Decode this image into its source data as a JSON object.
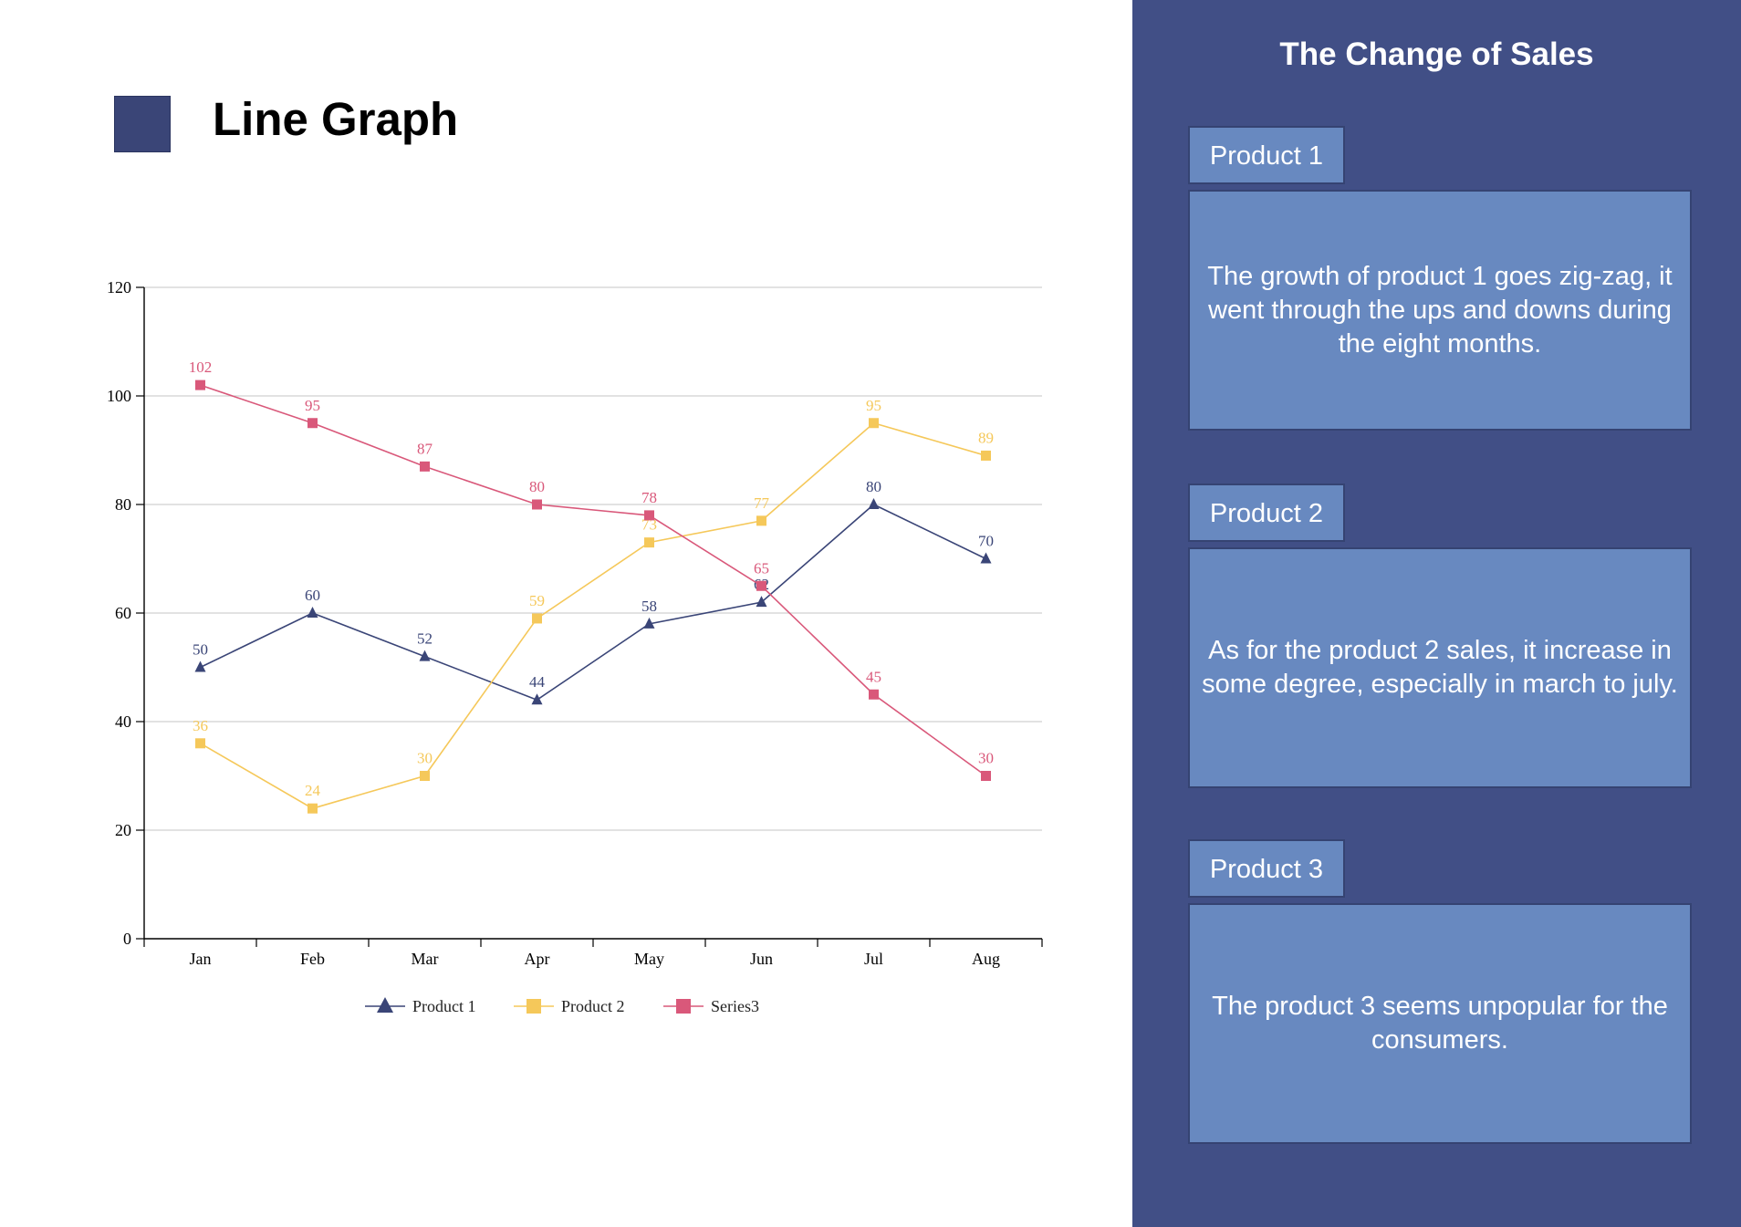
{
  "page": {
    "title": "Line Graph"
  },
  "panel": {
    "title": "The Change of Sales",
    "cards": [
      {
        "tab": "Product 1",
        "text": "The growth of product 1 goes zig-zag, it went through the ups and downs during the eight months."
      },
      {
        "tab": "Product 2",
        "text": "As for the product 2 sales, it increase in some degree, especially in march to july."
      },
      {
        "tab": "Product 3",
        "text": "The product 3 seems unpopular for the consumers."
      }
    ]
  },
  "chart_data": {
    "type": "line",
    "categories": [
      "Jan",
      "Feb",
      "Mar",
      "Apr",
      "May",
      "Jun",
      "Jul",
      "Aug"
    ],
    "ylim": [
      0,
      120
    ],
    "yticks": [
      0,
      20,
      40,
      60,
      80,
      100,
      120
    ],
    "grid": true,
    "legend": "bottom",
    "series": [
      {
        "name": "Product 1",
        "values": [
          50,
          60,
          52,
          44,
          58,
          62,
          80,
          70
        ],
        "color": "#3a4577",
        "marker": "triangle"
      },
      {
        "name": "Product 2",
        "values": [
          36,
          24,
          30,
          59,
          73,
          77,
          95,
          89
        ],
        "color": "#f5c85a",
        "marker": "square"
      },
      {
        "name": "Series3",
        "values": [
          102,
          95,
          87,
          80,
          78,
          65,
          45,
          30
        ],
        "color": "#d9587a",
        "marker": "square"
      }
    ]
  }
}
